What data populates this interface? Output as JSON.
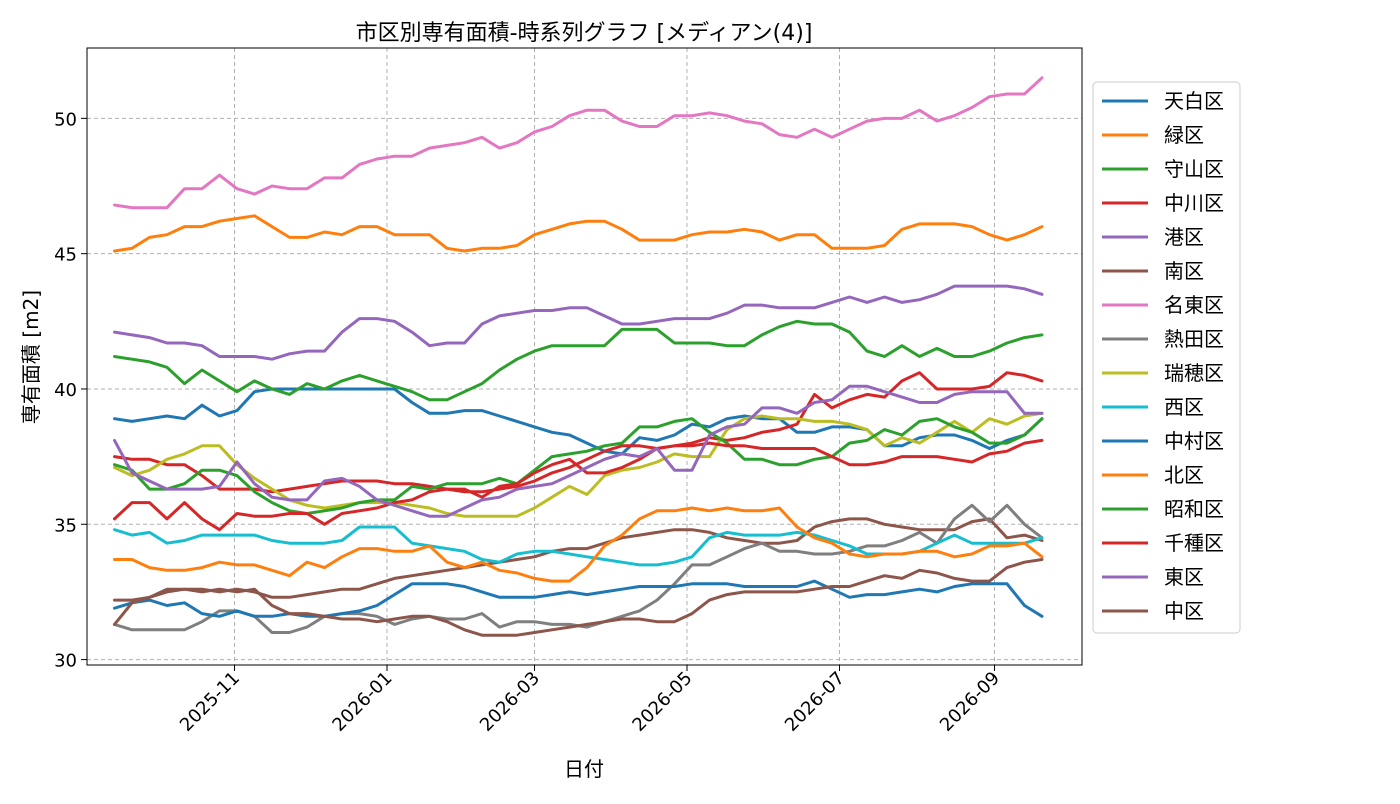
{
  "chart_data": {
    "type": "line",
    "title": "市区別専有面積-時系列グラフ [メディアン(4)]",
    "xlabel": "日付",
    "ylabel": "専有面積 [m2]",
    "x_axis_type": "date",
    "xlim": [
      "2025-09-03",
      "2026-10-06"
    ],
    "ylim": [
      29.8,
      52.6
    ],
    "x_ticks": [
      "2025-11-01",
      "2026-01-01",
      "2026-03-01",
      "2026-05-01",
      "2026-07-01",
      "2026-09-01"
    ],
    "x_tick_labels": [
      "2025-11",
      "2026-01",
      "2026-03",
      "2026-05",
      "2026-07",
      "2026-09"
    ],
    "y_ticks": [
      30,
      35,
      40,
      45,
      50
    ],
    "y_tick_labels": [
      "30",
      "35",
      "40",
      "45",
      "50"
    ],
    "grid": true,
    "legend_position": "right, outside plot",
    "dates": [
      "2025-09-14",
      "2025-09-21",
      "2025-09-28",
      "2025-10-05",
      "2025-10-12",
      "2025-10-19",
      "2025-10-26",
      "2025-11-02",
      "2025-11-09",
      "2025-11-16",
      "2025-11-23",
      "2025-11-30",
      "2025-12-07",
      "2025-12-14",
      "2025-12-21",
      "2025-12-28",
      "2026-01-04",
      "2026-01-11",
      "2026-01-18",
      "2026-01-25",
      "2026-02-01",
      "2026-02-08",
      "2026-02-15",
      "2026-02-22",
      "2026-03-01",
      "2026-03-08",
      "2026-03-15",
      "2026-03-22",
      "2026-03-29",
      "2026-04-05",
      "2026-04-12",
      "2026-04-19",
      "2026-04-26",
      "2026-05-03",
      "2026-05-10",
      "2026-05-17",
      "2026-05-24",
      "2026-05-31",
      "2026-06-07",
      "2026-06-14",
      "2026-06-21",
      "2026-06-28",
      "2026-07-05",
      "2026-07-12",
      "2026-07-19",
      "2026-07-26",
      "2026-08-02",
      "2026-08-09",
      "2026-08-16",
      "2026-08-23",
      "2026-08-30",
      "2026-09-06",
      "2026-09-13",
      "2026-09-20"
    ],
    "series": [
      {
        "name": "天白区",
        "color": "#1f77b4",
        "values": [
          38.9,
          38.8,
          38.9,
          39.0,
          38.9,
          39.4,
          39.0,
          39.2,
          39.9,
          40.0,
          40.0,
          40.0,
          40.0,
          40.0,
          40.0,
          40.0,
          40.0,
          39.5,
          39.1,
          39.1,
          39.2,
          39.2,
          39.0,
          38.8,
          38.6,
          38.4,
          38.3,
          38.0,
          37.7,
          37.6,
          38.2,
          38.1,
          38.3,
          38.7,
          38.6,
          38.9,
          39.0,
          38.9,
          38.9,
          38.4,
          38.4,
          38.6,
          38.6,
          38.5,
          37.9,
          37.9,
          38.2,
          38.3,
          38.3,
          38.1,
          37.8,
          38.1,
          38.3,
          38.9
        ]
      },
      {
        "name": "緑区",
        "color": "#ff7f0e",
        "values": [
          45.1,
          45.2,
          45.6,
          45.7,
          46.0,
          46.0,
          46.2,
          46.3,
          46.4,
          46.0,
          45.6,
          45.6,
          45.8,
          45.7,
          46.0,
          46.0,
          45.7,
          45.7,
          45.7,
          45.2,
          45.1,
          45.2,
          45.2,
          45.3,
          45.7,
          45.9,
          46.1,
          46.2,
          46.2,
          45.9,
          45.5,
          45.5,
          45.5,
          45.7,
          45.8,
          45.8,
          45.9,
          45.8,
          45.5,
          45.7,
          45.7,
          45.2,
          45.2,
          45.2,
          45.3,
          45.9,
          46.1,
          46.1,
          46.1,
          46.0,
          45.7,
          45.5,
          45.7,
          46.0
        ]
      },
      {
        "name": "守山区",
        "color": "#2ca02c",
        "values": [
          41.2,
          41.1,
          41.0,
          40.8,
          40.2,
          40.7,
          40.3,
          39.9,
          40.3,
          40.0,
          39.8,
          40.2,
          40.0,
          40.3,
          40.5,
          40.3,
          40.1,
          39.9,
          39.6,
          39.6,
          39.9,
          40.2,
          40.7,
          41.1,
          41.4,
          41.6,
          41.6,
          41.6,
          41.6,
          42.2,
          42.2,
          42.2,
          41.7,
          41.7,
          41.7,
          41.6,
          41.6,
          42.0,
          42.3,
          42.5,
          42.4,
          42.4,
          42.1,
          41.4,
          41.2,
          41.6,
          41.2,
          41.5,
          41.2,
          41.2,
          41.4,
          41.7,
          41.9,
          42.0
        ]
      },
      {
        "name": "中川区",
        "color": "#d62728",
        "values": [
          37.5,
          37.4,
          37.4,
          37.2,
          37.2,
          36.8,
          36.3,
          36.3,
          36.3,
          36.2,
          36.3,
          36.4,
          36.5,
          36.6,
          36.6,
          36.6,
          36.5,
          36.5,
          36.4,
          36.3,
          36.2,
          36.2,
          36.3,
          36.4,
          36.6,
          36.9,
          37.1,
          37.4,
          37.7,
          37.9,
          37.9,
          37.8,
          37.9,
          38.0,
          38.2,
          38.1,
          38.2,
          38.4,
          38.5,
          38.7,
          39.8,
          39.3,
          39.6,
          39.8,
          39.7,
          40.3,
          40.6,
          40.0,
          40.0,
          40.0,
          40.1,
          40.6,
          40.5,
          40.3
        ]
      },
      {
        "name": "港区",
        "color": "#9467bd",
        "values": [
          42.1,
          42.0,
          41.9,
          41.7,
          41.7,
          41.6,
          41.2,
          41.2,
          41.2,
          41.1,
          41.3,
          41.4,
          41.4,
          42.1,
          42.6,
          42.6,
          42.5,
          42.1,
          41.6,
          41.7,
          41.7,
          42.4,
          42.7,
          42.8,
          42.9,
          42.9,
          43.0,
          43.0,
          42.7,
          42.4,
          42.4,
          42.5,
          42.6,
          42.6,
          42.6,
          42.8,
          43.1,
          43.1,
          43.0,
          43.0,
          43.0,
          43.2,
          43.4,
          43.2,
          43.4,
          43.2,
          43.3,
          43.5,
          43.8,
          43.8,
          43.8,
          43.8,
          43.7,
          43.5
        ]
      },
      {
        "name": "南区",
        "color": "#8c564b",
        "values": [
          32.2,
          32.2,
          32.3,
          32.5,
          32.6,
          32.6,
          32.5,
          32.6,
          32.5,
          32.3,
          32.3,
          32.4,
          32.5,
          32.6,
          32.6,
          32.8,
          33.0,
          33.1,
          33.2,
          33.3,
          33.4,
          33.5,
          33.6,
          33.7,
          33.8,
          34.0,
          34.1,
          34.1,
          34.3,
          34.5,
          34.6,
          34.7,
          34.8,
          34.8,
          34.7,
          34.5,
          34.4,
          34.3,
          34.3,
          34.4,
          34.9,
          35.1,
          35.2,
          35.2,
          35.0,
          34.9,
          34.8,
          34.8,
          34.8,
          35.1,
          35.2,
          34.5,
          34.6,
          34.4
        ]
      },
      {
        "name": "名東区",
        "color": "#e377c2",
        "values": [
          46.8,
          46.7,
          46.7,
          46.7,
          47.4,
          47.4,
          47.9,
          47.4,
          47.2,
          47.5,
          47.4,
          47.4,
          47.8,
          47.8,
          48.3,
          48.5,
          48.6,
          48.6,
          48.9,
          49.0,
          49.1,
          49.3,
          48.9,
          49.1,
          49.5,
          49.7,
          50.1,
          50.3,
          50.3,
          49.9,
          49.7,
          49.7,
          50.1,
          50.1,
          50.2,
          50.1,
          49.9,
          49.8,
          49.4,
          49.3,
          49.6,
          49.3,
          49.6,
          49.9,
          50.0,
          50.0,
          50.3,
          49.9,
          50.1,
          50.4,
          50.8,
          50.9,
          50.9,
          51.5
        ]
      },
      {
        "name": "熱田区",
        "color": "#7f7f7f",
        "values": [
          31.3,
          31.1,
          31.1,
          31.1,
          31.1,
          31.4,
          31.8,
          31.8,
          31.6,
          31.0,
          31.0,
          31.2,
          31.6,
          31.7,
          31.7,
          31.6,
          31.3,
          31.5,
          31.6,
          31.5,
          31.5,
          31.7,
          31.2,
          31.4,
          31.4,
          31.3,
          31.3,
          31.2,
          31.4,
          31.6,
          31.8,
          32.2,
          32.8,
          33.5,
          33.5,
          33.8,
          34.1,
          34.3,
          34.0,
          34.0,
          33.9,
          33.9,
          34.0,
          34.2,
          34.2,
          34.4,
          34.7,
          34.3,
          35.2,
          35.7,
          35.1,
          35.7,
          35.0,
          34.5
        ]
      },
      {
        "name": "瑞穂区",
        "color": "#bcbd22",
        "values": [
          37.1,
          36.8,
          37.0,
          37.4,
          37.6,
          37.9,
          37.9,
          37.2,
          36.7,
          36.3,
          35.9,
          35.7,
          35.6,
          35.7,
          35.8,
          35.8,
          35.8,
          35.7,
          35.6,
          35.4,
          35.3,
          35.3,
          35.3,
          35.3,
          35.6,
          36.0,
          36.4,
          36.1,
          36.8,
          37.0,
          37.1,
          37.3,
          37.6,
          37.5,
          37.5,
          38.5,
          38.9,
          39.0,
          38.9,
          38.9,
          38.8,
          38.8,
          38.7,
          38.5,
          37.9,
          38.2,
          38.0,
          38.4,
          38.8,
          38.4,
          38.9,
          38.7,
          39.0,
          39.1
        ]
      },
      {
        "name": "西区",
        "color": "#17becf",
        "values": [
          34.8,
          34.6,
          34.7,
          34.3,
          34.4,
          34.6,
          34.6,
          34.6,
          34.6,
          34.4,
          34.3,
          34.3,
          34.3,
          34.4,
          34.9,
          34.9,
          34.9,
          34.3,
          34.2,
          34.1,
          34.0,
          33.7,
          33.6,
          33.9,
          34.0,
          34.0,
          33.9,
          33.8,
          33.7,
          33.6,
          33.5,
          33.5,
          33.6,
          33.8,
          34.5,
          34.7,
          34.6,
          34.6,
          34.6,
          34.7,
          34.6,
          34.4,
          34.2,
          33.9,
          33.9,
          33.9,
          34.0,
          34.3,
          34.6,
          34.3,
          34.3,
          34.3,
          34.3,
          34.5
        ]
      },
      {
        "name": "中村区",
        "color": "#1f77b4",
        "values": [
          31.9,
          32.1,
          32.2,
          32.0,
          32.1,
          31.7,
          31.6,
          31.8,
          31.6,
          31.6,
          31.7,
          31.6,
          31.6,
          31.7,
          31.8,
          32.0,
          32.4,
          32.8,
          32.8,
          32.8,
          32.7,
          32.5,
          32.3,
          32.3,
          32.3,
          32.4,
          32.5,
          32.4,
          32.5,
          32.6,
          32.7,
          32.7,
          32.7,
          32.8,
          32.8,
          32.8,
          32.7,
          32.7,
          32.7,
          32.7,
          32.9,
          32.6,
          32.3,
          32.4,
          32.4,
          32.5,
          32.6,
          32.5,
          32.7,
          32.8,
          32.8,
          32.8,
          32.0,
          31.6
        ]
      },
      {
        "name": "北区",
        "color": "#ff7f0e",
        "values": [
          33.7,
          33.7,
          33.4,
          33.3,
          33.3,
          33.4,
          33.6,
          33.5,
          33.5,
          33.3,
          33.1,
          33.6,
          33.4,
          33.8,
          34.1,
          34.1,
          34.0,
          34.0,
          34.2,
          33.6,
          33.4,
          33.6,
          33.3,
          33.2,
          33.0,
          32.9,
          32.9,
          33.4,
          34.2,
          34.6,
          35.2,
          35.5,
          35.5,
          35.6,
          35.5,
          35.6,
          35.5,
          35.5,
          35.6,
          34.9,
          34.5,
          34.3,
          33.9,
          33.8,
          33.9,
          33.9,
          34.0,
          34.0,
          33.8,
          33.9,
          34.2,
          34.2,
          34.3,
          33.8
        ]
      },
      {
        "name": "昭和区",
        "color": "#2ca02c",
        "values": [
          37.2,
          37.0,
          36.3,
          36.3,
          36.5,
          37.0,
          37.0,
          36.8,
          36.2,
          35.8,
          35.5,
          35.4,
          35.5,
          35.6,
          35.8,
          35.9,
          35.9,
          36.4,
          36.3,
          36.5,
          36.5,
          36.5,
          36.7,
          36.5,
          37.0,
          37.5,
          37.6,
          37.7,
          37.9,
          38.0,
          38.6,
          38.6,
          38.8,
          38.9,
          38.4,
          38.0,
          37.4,
          37.4,
          37.2,
          37.2,
          37.4,
          37.5,
          38.0,
          38.1,
          38.5,
          38.3,
          38.8,
          38.9,
          38.6,
          38.4,
          38.0,
          38.0,
          38.3,
          38.9
        ]
      },
      {
        "name": "千種区",
        "color": "#d62728",
        "values": [
          35.2,
          35.8,
          35.8,
          35.2,
          35.8,
          35.2,
          34.8,
          35.4,
          35.3,
          35.3,
          35.4,
          35.4,
          35.0,
          35.4,
          35.5,
          35.6,
          35.8,
          35.9,
          36.2,
          36.3,
          36.3,
          36.0,
          36.4,
          36.5,
          36.9,
          37.2,
          37.4,
          36.9,
          36.9,
          37.1,
          37.4,
          37.8,
          37.9,
          37.9,
          38.0,
          37.9,
          37.9,
          37.8,
          37.8,
          37.8,
          37.8,
          37.5,
          37.2,
          37.2,
          37.3,
          37.5,
          37.5,
          37.5,
          37.4,
          37.3,
          37.6,
          37.7,
          38.0,
          38.1
        ]
      },
      {
        "name": "東区",
        "color": "#9467bd",
        "values": [
          38.1,
          36.9,
          36.6,
          36.3,
          36.3,
          36.3,
          36.4,
          37.3,
          36.5,
          36.0,
          35.9,
          35.9,
          36.6,
          36.7,
          36.4,
          35.9,
          35.7,
          35.5,
          35.3,
          35.3,
          35.6,
          35.9,
          36.0,
          36.3,
          36.4,
          36.5,
          36.8,
          37.1,
          37.4,
          37.6,
          37.5,
          37.8,
          37.0,
          37.0,
          38.3,
          38.6,
          38.7,
          39.3,
          39.3,
          39.1,
          39.5,
          39.6,
          40.1,
          40.1,
          39.9,
          39.7,
          39.5,
          39.5,
          39.8,
          39.9,
          39.9,
          39.9,
          39.1,
          39.1
        ]
      },
      {
        "name": "中区",
        "color": "#8c564b",
        "values": [
          31.3,
          32.1,
          32.3,
          32.6,
          32.6,
          32.5,
          32.6,
          32.5,
          32.6,
          32.0,
          31.7,
          31.7,
          31.6,
          31.5,
          31.5,
          31.4,
          31.5,
          31.6,
          31.6,
          31.4,
          31.1,
          30.9,
          30.9,
          30.9,
          31.0,
          31.1,
          31.2,
          31.3,
          31.4,
          31.5,
          31.5,
          31.4,
          31.4,
          31.7,
          32.2,
          32.4,
          32.5,
          32.5,
          32.5,
          32.5,
          32.6,
          32.7,
          32.7,
          32.9,
          33.1,
          33.0,
          33.3,
          33.2,
          33.0,
          32.9,
          32.9,
          33.4,
          33.6,
          33.7
        ]
      }
    ]
  }
}
